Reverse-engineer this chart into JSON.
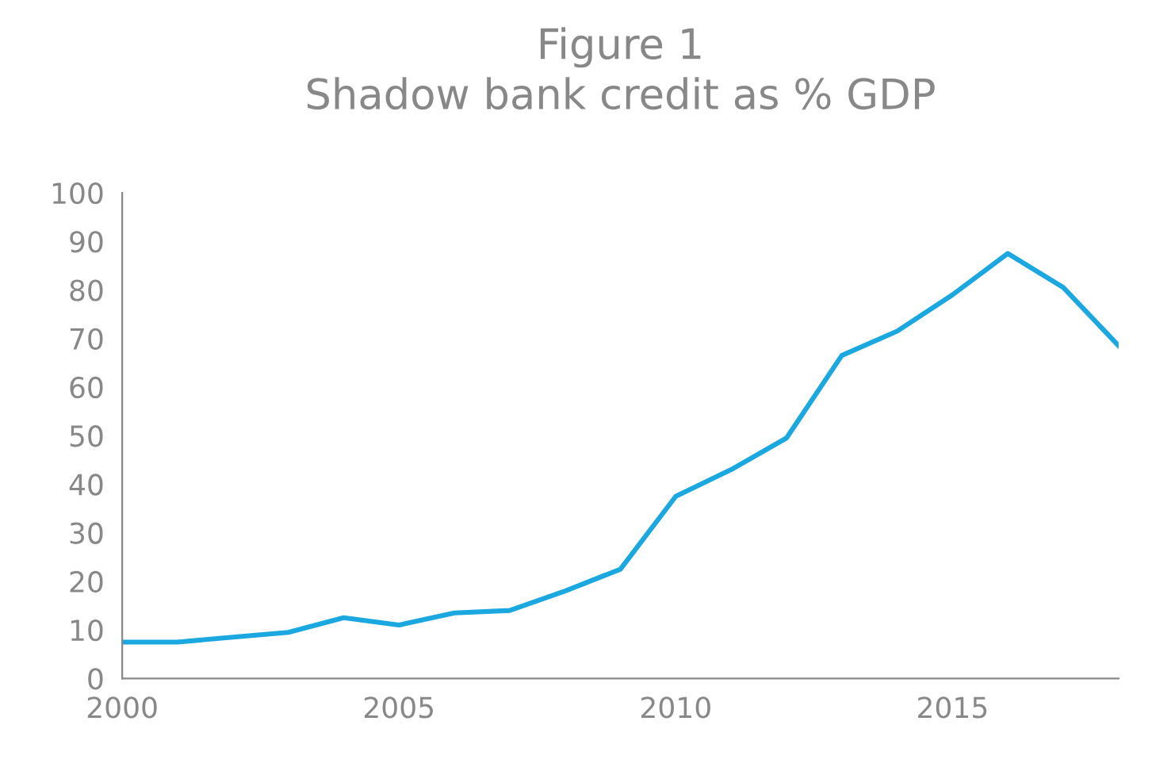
{
  "chart_data": {
    "type": "line",
    "title": "Figure 1\nShadow bank credit as % GDP",
    "x": [
      2000,
      2001,
      2002,
      2003,
      2004,
      2005,
      2006,
      2007,
      2008,
      2009,
      2010,
      2011,
      2012,
      2013,
      2014,
      2015,
      2016,
      2017,
      2018
    ],
    "series": [
      {
        "color": "#1ba8e0",
        "values": [
          7.5,
          7.5,
          8.5,
          9.5,
          12.5,
          11,
          13.5,
          14,
          18,
          22.5,
          37.5,
          43,
          49.5,
          66.5,
          71.5,
          79,
          87.5,
          80.5,
          68.5
        ]
      }
    ],
    "xlim": [
      2000,
      2018
    ],
    "xticks": [
      2000,
      2005,
      2010,
      2015
    ],
    "ylim": [
      0,
      100
    ],
    "yticks": [
      0,
      10,
      20,
      30,
      40,
      50,
      60,
      70,
      80,
      90,
      100
    ],
    "grid": false,
    "legend": false,
    "marker": "none",
    "line_style": "solid"
  }
}
